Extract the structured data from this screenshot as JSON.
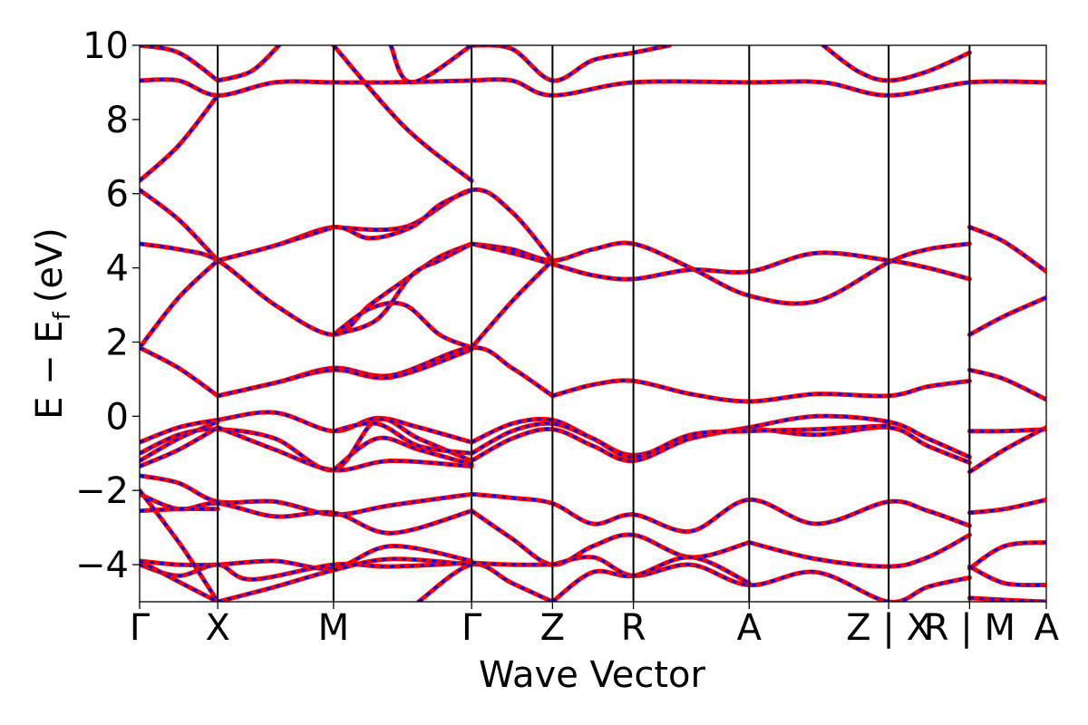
{
  "chart_data": {
    "type": "line",
    "title": "",
    "xlabel": "Wave Vector",
    "ylabel_main": "E − E",
    "ylabel_sub": "f",
    "ylabel_unit": "(eV)",
    "ylim": [
      -5,
      10
    ],
    "yticks": [
      -4,
      -2,
      0,
      2,
      4,
      6,
      8,
      10
    ],
    "ytick_labels": [
      "−4",
      "−2",
      "0",
      "2",
      "4",
      "6",
      "8",
      "10"
    ],
    "x_range": [
      0,
      6.5
    ],
    "kpoints": [
      {
        "x": 0.0,
        "label": "Γ"
      },
      {
        "x": 0.56,
        "label": "X"
      },
      {
        "x": 1.39,
        "label": "M"
      },
      {
        "x": 2.38,
        "label": "Γ"
      },
      {
        "x": 2.96,
        "label": "Z"
      },
      {
        "x": 3.54,
        "label": "R"
      },
      {
        "x": 4.37,
        "label": "A"
      },
      {
        "x": 5.37,
        "label": "Z | X"
      },
      {
        "x": 5.95,
        "label": "R | M"
      },
      {
        "x": 6.5,
        "label": "A"
      }
    ],
    "series_colors": {
      "dft": "#0000ff",
      "fit": "#ff0000"
    },
    "grid": false,
    "bands": [
      {
        "x": [
          0,
          0.28,
          0.56
        ],
        "y": [
          10.0,
          9.8,
          9.05
        ]
      },
      {
        "x": [
          0,
          0.28,
          0.56,
          0.97,
          1.39,
          1.8,
          2.38
        ],
        "y": [
          9.05,
          9.05,
          8.65,
          9.0,
          9.0,
          9.0,
          9.05
        ]
      },
      {
        "x": [
          0.56,
          0.8,
          1.0
        ],
        "y": [
          9.05,
          9.3,
          10.0
        ]
      },
      {
        "x": [
          1.8,
          1.95,
          2.38
        ],
        "y": [
          10.0,
          9.0,
          10.0
        ]
      },
      {
        "x": [
          2.38,
          2.67,
          2.96,
          3.25,
          3.54,
          3.8
        ],
        "y": [
          10.0,
          9.9,
          9.05,
          9.6,
          9.8,
          10.0
        ]
      },
      {
        "x": [
          2.38,
          2.67,
          2.96,
          3.54,
          4.37,
          4.9,
          5.37,
          5.95,
          6.5
        ],
        "y": [
          9.05,
          9.05,
          8.65,
          9.0,
          9.0,
          9.0,
          8.65,
          9.0,
          9.0
        ]
      },
      {
        "x": [
          4.9,
          5.15,
          5.37,
          5.65,
          5.95
        ],
        "y": [
          10.0,
          9.3,
          9.05,
          9.3,
          9.8
        ]
      },
      {
        "x": [
          0,
          0.28,
          0.56
        ],
        "y": [
          6.35,
          7.3,
          8.65
        ]
      },
      {
        "x": [
          1.39,
          1.9,
          2.38
        ],
        "y": [
          10.0,
          7.8,
          6.35
        ]
      },
      {
        "x": [
          0,
          0.28,
          0.56
        ],
        "y": [
          6.1,
          5.3,
          4.2
        ]
      },
      {
        "x": [
          1.39,
          1.9,
          2.38,
          2.67,
          2.96
        ],
        "y": [
          5.1,
          5.1,
          6.1,
          5.5,
          4.2
        ]
      },
      {
        "x": [
          0.56,
          0.97,
          1.39,
          1.65,
          1.95,
          2.15,
          2.38
        ],
        "y": [
          4.2,
          4.6,
          5.1,
          4.8,
          5.1,
          5.7,
          6.1
        ]
      },
      {
        "x": [
          0,
          0.28,
          0.56,
          0.97,
          1.39,
          1.65,
          1.95,
          2.15,
          2.38
        ],
        "y": [
          4.65,
          4.5,
          4.2,
          3.0,
          2.2,
          3.0,
          3.8,
          4.3,
          4.65
        ]
      },
      {
        "x": [
          0.56,
          0.97,
          1.39
        ],
        "y": [
          4.2,
          4.6,
          5.1
        ]
      },
      {
        "x": [
          0,
          0.28,
          0.56
        ],
        "y": [
          1.85,
          3.2,
          4.2
        ]
      },
      {
        "x": [
          1.39,
          1.65,
          1.9,
          2.15,
          2.38
        ],
        "y": [
          2.2,
          2.9,
          3.0,
          2.2,
          1.85
        ]
      },
      {
        "x": [
          1.39,
          1.7,
          1.95,
          2.15,
          2.38
        ],
        "y": [
          2.2,
          2.6,
          3.8,
          4.2,
          4.65
        ]
      },
      {
        "x": [
          2.38,
          2.67,
          2.96,
          3.25,
          3.54,
          3.95,
          4.37,
          4.85,
          5.37,
          5.65,
          5.95
        ],
        "y": [
          4.65,
          4.5,
          4.2,
          4.5,
          4.65,
          4.0,
          3.25,
          3.1,
          4.15,
          4.5,
          4.65
        ]
      },
      {
        "x": [
          2.38,
          2.67,
          2.96,
          3.25,
          3.54,
          3.95,
          4.37,
          4.85,
          5.37,
          5.65,
          5.95
        ],
        "y": [
          4.65,
          4.4,
          4.1,
          3.8,
          3.7,
          3.95,
          3.9,
          4.4,
          4.2,
          4.0,
          3.7
        ]
      },
      {
        "x": [
          2.38,
          2.67,
          2.96
        ],
        "y": [
          1.85,
          3.1,
          4.2
        ]
      },
      {
        "x": [
          0,
          0.28,
          0.56
        ],
        "y": [
          1.85,
          1.3,
          0.55
        ]
      },
      {
        "x": [
          0.56,
          0.97,
          1.39,
          1.8,
          2.38,
          2.67,
          2.96
        ],
        "y": [
          0.55,
          0.9,
          1.3,
          1.1,
          1.85,
          1.3,
          0.55
        ]
      },
      {
        "x": [
          0.56,
          0.97,
          1.39,
          1.8,
          2.38
        ],
        "y": [
          0.55,
          0.9,
          1.25,
          1.05,
          1.8
        ]
      },
      {
        "x": [
          2.96,
          3.25,
          3.54,
          3.95,
          4.37,
          4.85,
          5.37,
          5.65,
          5.95
        ],
        "y": [
          0.55,
          0.85,
          0.95,
          0.6,
          0.4,
          0.6,
          0.55,
          0.8,
          0.95
        ]
      },
      {
        "x": [
          5.95,
          6.2,
          6.5
        ],
        "y": [
          1.25,
          1.0,
          0.45
        ]
      },
      {
        "x": [
          5.95,
          6.2,
          6.5
        ],
        "y": [
          2.2,
          2.7,
          3.2
        ]
      },
      {
        "x": [
          5.95,
          6.2,
          6.5
        ],
        "y": [
          5.1,
          4.7,
          3.9
        ]
      },
      {
        "x": [
          0,
          0.28,
          0.56,
          0.97,
          1.39,
          1.7,
          2.0,
          2.38
        ],
        "y": [
          -0.7,
          -0.3,
          -0.1,
          0.1,
          -0.4,
          -0.05,
          -0.3,
          -0.7
        ]
      },
      {
        "x": [
          0,
          0.28,
          0.56,
          0.97,
          1.39,
          1.7,
          2.0,
          2.38
        ],
        "y": [
          -1.0,
          -0.5,
          -0.35,
          -0.6,
          -1.45,
          -0.1,
          -0.6,
          -1.2
        ]
      },
      {
        "x": [
          0,
          0.28,
          0.56
        ],
        "y": [
          -1.2,
          -0.6,
          -0.15
        ]
      },
      {
        "x": [
          0,
          0.28,
          0.56
        ],
        "y": [
          -1.35,
          -0.9,
          -0.3
        ]
      },
      {
        "x": [
          0.56,
          0.97,
          1.39,
          1.8,
          2.38
        ],
        "y": [
          -0.3,
          -0.9,
          -1.45,
          -1.2,
          -1.35
        ]
      },
      {
        "x": [
          1.39,
          1.7,
          2.0,
          2.38
        ],
        "y": [
          -0.4,
          -0.2,
          -0.8,
          -1.0
        ]
      },
      {
        "x": [
          1.39,
          1.7,
          2.0,
          2.38
        ],
        "y": [
          -1.45,
          -0.6,
          -0.9,
          -1.3
        ]
      },
      {
        "x": [
          2.38,
          2.67,
          2.96,
          3.25,
          3.54,
          3.95,
          4.37,
          4.85,
          5.37,
          5.65,
          5.95
        ],
        "y": [
          -0.7,
          -0.2,
          -0.1,
          -0.6,
          -1.05,
          -0.6,
          -0.3,
          0.0,
          -0.15,
          -0.6,
          -1.1
        ]
      },
      {
        "x": [
          2.38,
          2.67,
          2.96,
          3.25,
          3.54,
          3.95,
          4.37,
          4.85,
          5.37,
          5.65,
          5.95
        ],
        "y": [
          -1.2,
          -0.6,
          -0.35,
          -0.8,
          -1.2,
          -0.6,
          -0.35,
          -0.5,
          -0.3,
          -0.8,
          -1.25
        ]
      },
      {
        "x": [
          2.38,
          2.67,
          2.96,
          3.25,
          3.54,
          3.95,
          4.37,
          4.85,
          5.37
        ],
        "y": [
          -1.0,
          -0.4,
          -0.2,
          -0.6,
          -1.1,
          -0.5,
          -0.4,
          -0.35,
          -0.25
        ]
      },
      {
        "x": [
          5.95,
          6.2,
          6.5
        ],
        "y": [
          -0.4,
          -0.4,
          -0.35
        ]
      },
      {
        "x": [
          5.95,
          6.2,
          6.5
        ],
        "y": [
          -1.5,
          -0.9,
          -0.3
        ]
      },
      {
        "x": [
          0,
          0.28,
          0.56,
          0.97,
          1.39,
          1.8,
          2.38
        ],
        "y": [
          -1.6,
          -1.8,
          -2.3,
          -2.3,
          -2.65,
          -2.4,
          -2.1
        ]
      },
      {
        "x": [
          0,
          0.28,
          0.56,
          0.97,
          1.39,
          1.8,
          2.38
        ],
        "y": [
          -2.1,
          -2.5,
          -2.35,
          -2.7,
          -2.6,
          -3.15,
          -2.55
        ]
      },
      {
        "x": [
          0,
          0.28,
          0.56
        ],
        "y": [
          -2.55,
          -2.5,
          -2.5
        ]
      },
      {
        "x": [
          2.38,
          2.67,
          2.96,
          3.25,
          3.54,
          3.95,
          4.37,
          4.85,
          5.37,
          5.65,
          5.95
        ],
        "y": [
          -2.1,
          -2.2,
          -2.35,
          -2.9,
          -2.65,
          -3.1,
          -2.25,
          -2.9,
          -2.3,
          -2.55,
          -2.95
        ]
      },
      {
        "x": [
          2.38,
          2.67,
          2.96,
          3.25,
          3.54,
          3.95,
          4.37
        ],
        "y": [
          -2.55,
          -3.3,
          -4.0,
          -3.5,
          -3.2,
          -3.8,
          -3.4
        ]
      },
      {
        "x": [
          4.37,
          4.85,
          5.37,
          5.65,
          5.95
        ],
        "y": [
          -3.4,
          -3.85,
          -4.05,
          -3.8,
          -3.2
        ]
      },
      {
        "x": [
          5.95,
          6.2,
          6.5
        ],
        "y": [
          -2.6,
          -2.5,
          -2.25
        ]
      },
      {
        "x": [
          5.95,
          6.2,
          6.5
        ],
        "y": [
          -4.1,
          -3.5,
          -3.4
        ]
      },
      {
        "x": [
          0,
          0.28,
          0.56,
          0.97,
          1.39,
          1.8,
          2.38
        ],
        "y": [
          -3.9,
          -4.0,
          -4.0,
          -3.9,
          -4.1,
          -3.5,
          -3.9
        ]
      },
      {
        "x": [
          0,
          0.28,
          0.56,
          0.8,
          1.39,
          1.8,
          2.38
        ],
        "y": [
          -4.0,
          -4.3,
          -4.0,
          -4.4,
          -4.0,
          -4.05,
          -3.95
        ]
      },
      {
        "x": [
          0,
          0.3,
          0.56
        ],
        "y": [
          -2.0,
          -3.5,
          -5.0
        ]
      },
      {
        "x": [
          0,
          0.3,
          0.56
        ],
        "y": [
          -3.9,
          -4.5,
          -5.0
        ]
      },
      {
        "x": [
          0.56,
          0.97,
          1.39,
          1.8,
          2.38
        ],
        "y": [
          -5.0,
          -4.6,
          -4.15,
          -3.85,
          -4.0
        ]
      },
      {
        "x": [
          2.0,
          2.38,
          2.67,
          2.96
        ],
        "y": [
          -5.0,
          -4.0,
          -4.5,
          -5.0
        ]
      },
      {
        "x": [
          2.38,
          2.67,
          2.96
        ],
        "y": [
          -3.95,
          -4.0,
          -4.0
        ]
      },
      {
        "x": [
          2.96,
          3.25,
          3.54,
          3.95,
          4.37,
          4.85,
          5.37,
          5.65,
          5.95
        ],
        "y": [
          -4.0,
          -3.8,
          -4.3,
          -4.0,
          -4.55,
          -4.2,
          -5.0,
          -4.6,
          -4.35
        ]
      },
      {
        "x": [
          2.96,
          3.25,
          3.54,
          3.95,
          4.37
        ],
        "y": [
          -5.0,
          -4.2,
          -4.3,
          -3.8,
          -4.5
        ]
      },
      {
        "x": [
          5.95,
          6.2,
          6.5
        ],
        "y": [
          -4.05,
          -4.5,
          -4.55
        ]
      },
      {
        "x": [
          5.95,
          6.2,
          6.5
        ],
        "y": [
          -4.9,
          -4.95,
          -5.0
        ]
      }
    ]
  }
}
